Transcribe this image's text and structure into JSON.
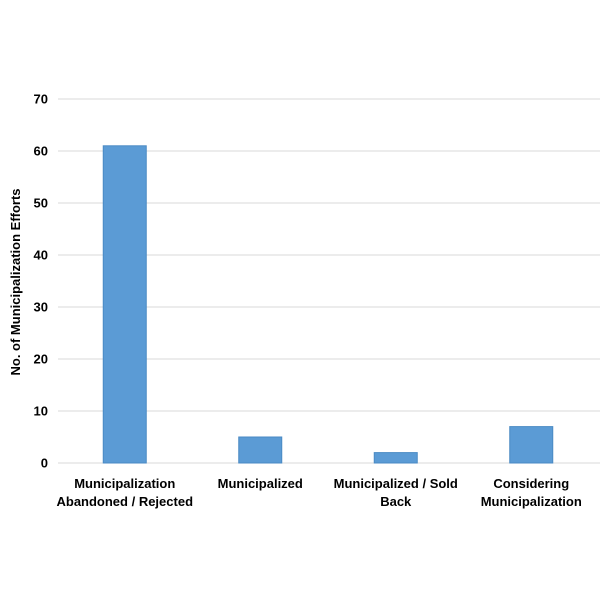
{
  "chart_data": {
    "type": "bar",
    "categories": [
      [
        "Municipalization",
        "Abandoned / Rejected"
      ],
      [
        "Municipalized"
      ],
      [
        "Municipalized / Sold",
        "Back"
      ],
      [
        "Considering",
        "Municipalization"
      ]
    ],
    "values": [
      61,
      5,
      2,
      7
    ],
    "title": "",
    "xlabel": "",
    "ylabel": "No. of Municipalization Efforts",
    "ylim": [
      0,
      70
    ],
    "yticks": [
      0,
      10,
      20,
      30,
      40,
      50,
      60,
      70
    ],
    "grid": true,
    "bar_color": "#5b9bd5",
    "bar_edge_color": "#4a8ac4"
  }
}
